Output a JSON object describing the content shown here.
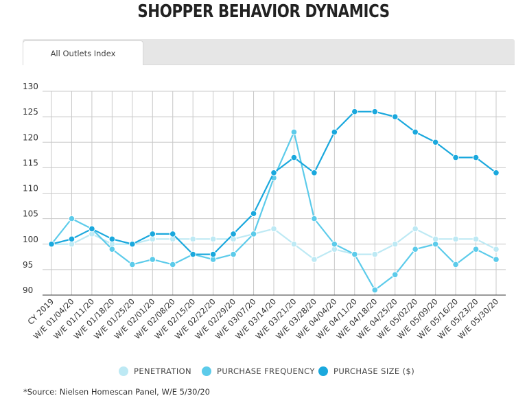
{
  "title": "SHOPPER BEHAVIOR DYNAMICS",
  "tab": {
    "label": "All Outlets Index"
  },
  "source": "*Source: Nielsen Homescan Panel, W/E 5/30/20",
  "colors": {
    "penetration": "#bde9f4",
    "frequency": "#5ccbea",
    "size": "#1aa8dd",
    "grid": "#c8c8c8",
    "axis": "#333333"
  },
  "chart_data": {
    "type": "line",
    "title": "SHOPPER BEHAVIOR DYNAMICS",
    "xlabel": "",
    "ylabel": "",
    "ylim": [
      90,
      130
    ],
    "yticks": [
      90,
      95,
      100,
      105,
      110,
      115,
      120,
      125,
      130
    ],
    "grid": true,
    "legend": "bottom",
    "categories": [
      "CY 2019",
      "W/E 01/04/20",
      "W/E 01/11/20",
      "W/E 01/18/20",
      "W/E 01/25/20",
      "W/E 02/01/20",
      "W/E 02/08/20",
      "W/E 02/15/20",
      "W/E 02/22/20",
      "W/E 02/29/20",
      "W/E 03/07/20",
      "W/E 03/14/20",
      "W/E 03/21/20",
      "W/E 03/28/20",
      "W/E 04/04/20",
      "W/E 04/11/20",
      "W/E 04/18/20",
      "W/E 04/25/20",
      "W/E 05/02/20",
      "W/E 05/09/20",
      "W/E 05/16/20",
      "W/E 05/23/20",
      "W/E 05/30/20"
    ],
    "series": [
      {
        "name": "PENETRATION",
        "color": "#bde9f4",
        "values": [
          100,
          100,
          102,
          100,
          100,
          101,
          101,
          101,
          101,
          101,
          102,
          103,
          100,
          97,
          99,
          98,
          98,
          100,
          103,
          101,
          101,
          101,
          99
        ]
      },
      {
        "name": "PURCHASE FREQUENCY",
        "color": "#5ccbea",
        "values": [
          100,
          105,
          103,
          99,
          96,
          97,
          96,
          98,
          97,
          98,
          102,
          113,
          122,
          105,
          100,
          98,
          91,
          94,
          99,
          100,
          96,
          99,
          97
        ]
      },
      {
        "name": "PURCHASE SIZE ($)",
        "color": "#1aa8dd",
        "values": [
          100,
          101,
          103,
          101,
          100,
          102,
          102,
          98,
          98,
          102,
          106,
          114,
          117,
          114,
          122,
          126,
          126,
          125,
          122,
          120,
          117,
          117,
          114
        ]
      }
    ]
  }
}
